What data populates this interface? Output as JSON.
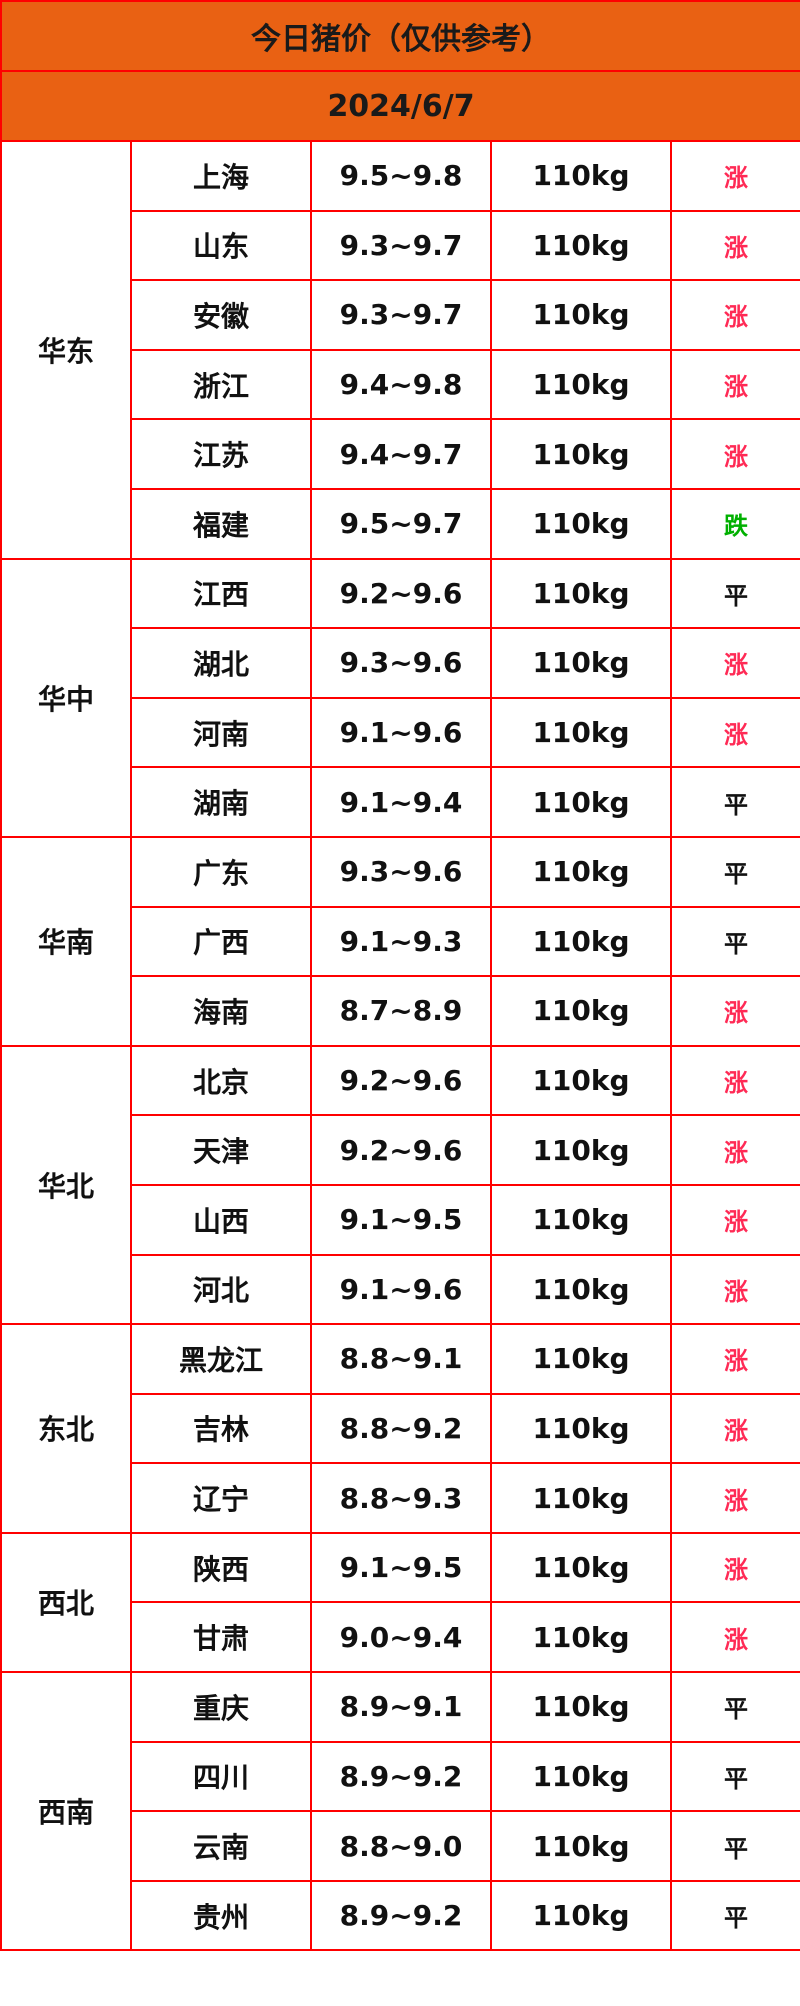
{
  "title": "今日猪价（仅供参考）",
  "date": "2024/6/7",
  "trend_colors": {
    "涨": "#ff2a55",
    "跌": "#00b000",
    "平": "#111111"
  },
  "regions": [
    {
      "name": "华东",
      "rows": [
        {
          "province": "上海",
          "price": "9.5~9.8",
          "weight": "110kg",
          "trend": "涨"
        },
        {
          "province": "山东",
          "price": "9.3~9.7",
          "weight": "110kg",
          "trend": "涨"
        },
        {
          "province": "安徽",
          "price": "9.3~9.7",
          "weight": "110kg",
          "trend": "涨"
        },
        {
          "province": "浙江",
          "price": "9.4~9.8",
          "weight": "110kg",
          "trend": "涨"
        },
        {
          "province": "江苏",
          "price": "9.4~9.7",
          "weight": "110kg",
          "trend": "涨"
        },
        {
          "province": "福建",
          "price": "9.5~9.7",
          "weight": "110kg",
          "trend": "跌"
        }
      ]
    },
    {
      "name": "华中",
      "rows": [
        {
          "province": "江西",
          "price": "9.2~9.6",
          "weight": "110kg",
          "trend": "平"
        },
        {
          "province": "湖北",
          "price": "9.3~9.6",
          "weight": "110kg",
          "trend": "涨"
        },
        {
          "province": "河南",
          "price": "9.1~9.6",
          "weight": "110kg",
          "trend": "涨"
        },
        {
          "province": "湖南",
          "price": "9.1~9.4",
          "weight": "110kg",
          "trend": "平"
        }
      ]
    },
    {
      "name": "华南",
      "rows": [
        {
          "province": "广东",
          "price": "9.3~9.6",
          "weight": "110kg",
          "trend": "平"
        },
        {
          "province": "广西",
          "price": "9.1~9.3",
          "weight": "110kg",
          "trend": "平"
        },
        {
          "province": "海南",
          "price": "8.7~8.9",
          "weight": "110kg",
          "trend": "涨"
        }
      ]
    },
    {
      "name": "华北",
      "rows": [
        {
          "province": "北京",
          "price": "9.2~9.6",
          "weight": "110kg",
          "trend": "涨"
        },
        {
          "province": "天津",
          "price": "9.2~9.6",
          "weight": "110kg",
          "trend": "涨"
        },
        {
          "province": "山西",
          "price": "9.1~9.5",
          "weight": "110kg",
          "trend": "涨"
        },
        {
          "province": "河北",
          "price": "9.1~9.6",
          "weight": "110kg",
          "trend": "涨"
        }
      ]
    },
    {
      "name": "东北",
      "rows": [
        {
          "province": "黑龙江",
          "price": "8.8~9.1",
          "weight": "110kg",
          "trend": "涨"
        },
        {
          "province": "吉林",
          "price": "8.8~9.2",
          "weight": "110kg",
          "trend": "涨"
        },
        {
          "province": "辽宁",
          "price": "8.8~9.3",
          "weight": "110kg",
          "trend": "涨"
        }
      ]
    },
    {
      "name": "西北",
      "rows": [
        {
          "province": "陕西",
          "price": "9.1~9.5",
          "weight": "110kg",
          "trend": "涨"
        },
        {
          "province": "甘肃",
          "price": "9.0~9.4",
          "weight": "110kg",
          "trend": "涨"
        }
      ]
    },
    {
      "name": "西南",
      "rows": [
        {
          "province": "重庆",
          "price": "8.9~9.1",
          "weight": "110kg",
          "trend": "平"
        },
        {
          "province": "四川",
          "price": "8.9~9.2",
          "weight": "110kg",
          "trend": "平"
        },
        {
          "province": "云南",
          "price": "8.8~9.0",
          "weight": "110kg",
          "trend": "平"
        },
        {
          "province": "贵州",
          "price": "8.9~9.2",
          "weight": "110kg",
          "trend": "平"
        }
      ]
    }
  ]
}
